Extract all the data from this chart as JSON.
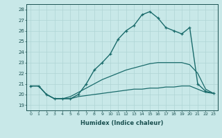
{
  "xlabel": "Humidex (Indice chaleur)",
  "ylabel": "",
  "background_color": "#c8e8e8",
  "grid_color": "#afd4d4",
  "line_color": "#1a6b6b",
  "xlim": [
    -0.5,
    23.5
  ],
  "ylim": [
    18.5,
    28.5
  ],
  "xtick_labels": [
    "0",
    "1",
    "2",
    "3",
    "4",
    "5",
    "6",
    "7",
    "8",
    "9",
    "10",
    "11",
    "12",
    "13",
    "14",
    "15",
    "16",
    "17",
    "18",
    "19",
    "20",
    "21",
    "22",
    "23"
  ],
  "ytick_labels": [
    "19",
    "20",
    "21",
    "22",
    "23",
    "24",
    "25",
    "26",
    "27",
    "28"
  ],
  "series": [
    {
      "x": [
        0,
        1,
        2,
        3,
        4,
        5,
        6,
        7,
        8,
        9,
        10,
        11,
        12,
        13,
        14,
        15,
        16,
        17,
        18,
        19,
        20,
        21,
        22,
        23
      ],
      "y": [
        20.8,
        20.8,
        20.0,
        19.6,
        19.6,
        19.6,
        19.8,
        19.9,
        20.0,
        20.1,
        20.2,
        20.3,
        20.4,
        20.5,
        20.5,
        20.6,
        20.6,
        20.7,
        20.7,
        20.8,
        20.8,
        20.5,
        20.2,
        20.1
      ],
      "has_markers": false,
      "linewidth": 0.9
    },
    {
      "x": [
        0,
        1,
        2,
        3,
        4,
        5,
        6,
        7,
        8,
        9,
        10,
        11,
        12,
        13,
        14,
        15,
        16,
        17,
        18,
        19,
        20,
        21,
        22,
        23
      ],
      "y": [
        20.8,
        20.8,
        20.0,
        19.6,
        19.6,
        19.8,
        20.2,
        20.6,
        21.0,
        21.4,
        21.7,
        22.0,
        22.3,
        22.5,
        22.7,
        22.9,
        23.0,
        23.0,
        23.0,
        23.0,
        22.8,
        22.0,
        20.5,
        20.1
      ],
      "has_markers": false,
      "linewidth": 0.9
    },
    {
      "x": [
        0,
        1,
        2,
        3,
        4,
        5,
        6,
        7,
        8,
        9,
        10,
        11,
        12,
        13,
        14,
        15,
        16,
        17,
        18,
        19,
        20,
        21,
        22,
        23
      ],
      "y": [
        20.8,
        20.8,
        20.0,
        19.6,
        19.6,
        19.6,
        20.0,
        21.0,
        22.3,
        23.0,
        23.8,
        25.2,
        26.0,
        26.5,
        27.5,
        27.8,
        27.2,
        26.3,
        26.0,
        25.7,
        26.3,
        21.0,
        20.3,
        20.1
      ],
      "has_markers": true,
      "linewidth": 1.0
    }
  ]
}
